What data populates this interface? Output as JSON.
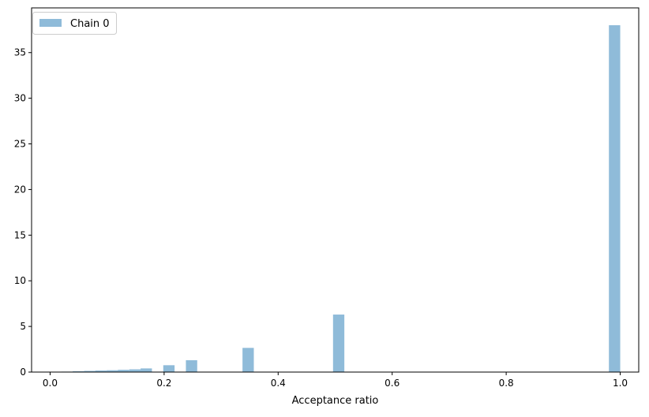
{
  "chart_data": {
    "type": "bar",
    "subtype": "histogram",
    "title": "",
    "xlabel": "Acceptance ratio",
    "ylabel": "",
    "xlim": [
      -0.0325,
      1.0325
    ],
    "ylim": [
      0,
      39.9
    ],
    "xticks": [
      0.0,
      0.2,
      0.4,
      0.6,
      0.8,
      1.0
    ],
    "xtick_labels": [
      "0.0",
      "0.2",
      "0.4",
      "0.6",
      "0.8",
      "1.0"
    ],
    "yticks": [
      0,
      5,
      10,
      15,
      20,
      25,
      30,
      35
    ],
    "ytick_labels": [
      "0",
      "5",
      "10",
      "15",
      "20",
      "25",
      "30",
      "35"
    ],
    "grid": false,
    "legend": {
      "position": "top-left",
      "entries": [
        "Chain 0"
      ]
    },
    "bin_width": 0.01985,
    "series": [
      {
        "name": "Chain 0",
        "color": "#1f77b4",
        "alpha": 0.5,
        "bins": [
          {
            "x": 0.0099,
            "y": 0.02
          },
          {
            "x": 0.0298,
            "y": 0.05
          },
          {
            "x": 0.0496,
            "y": 0.09
          },
          {
            "x": 0.0695,
            "y": 0.13
          },
          {
            "x": 0.0893,
            "y": 0.17
          },
          {
            "x": 0.1092,
            "y": 0.2
          },
          {
            "x": 0.129,
            "y": 0.25
          },
          {
            "x": 0.1489,
            "y": 0.3
          },
          {
            "x": 0.1687,
            "y": 0.4
          },
          {
            "x": 0.2084,
            "y": 0.75
          },
          {
            "x": 0.2481,
            "y": 1.3
          },
          {
            "x": 0.3474,
            "y": 2.65
          },
          {
            "x": 0.5062,
            "y": 6.3
          },
          {
            "x": 0.9901,
            "y": 38.0
          }
        ]
      }
    ]
  }
}
